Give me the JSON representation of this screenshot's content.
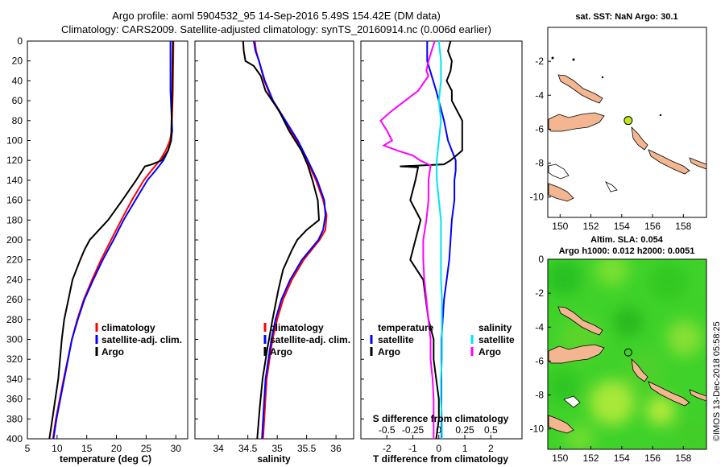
{
  "header": {
    "title_line1": "Argo profile: aoml 5904532_95 14-Sep-2016 5.49S 154.42E (DM data)",
    "title_line2": "Climatology: CARS2009. Satellite-adjusted climatology: synTS_20160914.nc (0.006d earlier)",
    "imos_stamp": "©IMOS 13-Dec-2018 05:58:25"
  },
  "colors": {
    "climatology": "#ff0000",
    "satellite": "#0000ff",
    "argo": "#000000",
    "sat_s": "#00e5ee",
    "s_diff": "#ff00ff",
    "land": "#f4b690",
    "sea_green": "#3fd22a",
    "float_marker": "#bfe61a"
  },
  "depth_ticks": [
    "0",
    "20",
    "40",
    "60",
    "80",
    "100",
    "120",
    "140",
    "160",
    "180",
    "200",
    "220",
    "240",
    "260",
    "280",
    "300",
    "320",
    "340",
    "360",
    "380",
    "400"
  ],
  "chart_data": [
    {
      "type": "line",
      "title": "",
      "xlabel": "temperature (deg C)",
      "ylabel": "depth",
      "xlim": [
        5,
        32
      ],
      "ylim": [
        0,
        400
      ],
      "xticks": [
        5,
        10,
        15,
        20,
        25,
        30
      ],
      "xtick_labels": [
        "5",
        "10",
        "15",
        "20",
        "25",
        "30"
      ],
      "legend": [
        "climatology",
        "satellite-adj. clim.",
        "Argo"
      ],
      "series": [
        {
          "name": "climatology",
          "color": "#ff0000",
          "depth": [
            0,
            50,
            90,
            100,
            110,
            120,
            130,
            140,
            160,
            180,
            200,
            220,
            240,
            260,
            280,
            300,
            340,
            380,
            400
          ],
          "values": [
            29.6,
            29.5,
            29.3,
            29.0,
            28.3,
            27.3,
            25.9,
            24.6,
            22.6,
            20.8,
            19.1,
            17.4,
            15.9,
            14.5,
            13.4,
            12.5,
            11.1,
            9.8,
            9.3
          ]
        },
        {
          "name": "satellite-adj. clim.",
          "color": "#0000ff",
          "depth": [
            0,
            50,
            90,
            100,
            110,
            120,
            130,
            140,
            160,
            180,
            200,
            220,
            240,
            260,
            280,
            300,
            340,
            380,
            400
          ],
          "values": [
            29.1,
            29.1,
            29.4,
            29.2,
            28.7,
            27.9,
            26.6,
            25.2,
            23.2,
            21.2,
            19.5,
            17.7,
            16.1,
            14.6,
            13.5,
            12.5,
            11.2,
            9.9,
            9.4
          ]
        },
        {
          "name": "Argo",
          "color": "#000000",
          "depth": [
            0,
            50,
            100,
            110,
            120,
            124,
            126,
            140,
            160,
            180,
            200,
            210,
            220,
            240,
            260,
            280,
            300,
            340,
            380,
            400
          ],
          "values": [
            29.5,
            29.4,
            29.2,
            28.7,
            27.6,
            26.0,
            24.8,
            23.3,
            21.0,
            18.6,
            15.5,
            14.6,
            13.9,
            12.6,
            11.9,
            11.2,
            10.8,
            10.2,
            9.2,
            8.7
          ]
        }
      ]
    },
    {
      "type": "line",
      "title": "",
      "xlabel": "salinity",
      "ylabel": "depth",
      "xlim": [
        33.6,
        36.3
      ],
      "ylim": [
        0,
        400
      ],
      "xticks": [
        34,
        34.5,
        35,
        35.5,
        36
      ],
      "xtick_labels": [
        "34",
        "34.5",
        "35",
        "35.5",
        "36"
      ],
      "legend": [
        "climatology",
        "satellite-adj. clim.",
        "Argo"
      ],
      "series": [
        {
          "name": "climatology",
          "color": "#ff0000",
          "depth": [
            0,
            10,
            20,
            40,
            60,
            80,
            100,
            120,
            140,
            160,
            175,
            190,
            200,
            220,
            240,
            260,
            280,
            300,
            340,
            380,
            400
          ],
          "values": [
            34.62,
            34.64,
            34.69,
            34.78,
            34.92,
            35.13,
            35.33,
            35.5,
            35.66,
            35.78,
            35.84,
            35.82,
            35.72,
            35.45,
            35.25,
            35.1,
            35.0,
            34.92,
            34.82,
            34.78,
            34.76
          ]
        },
        {
          "name": "satellite-adj. clim.",
          "color": "#0000ff",
          "depth": [
            0,
            10,
            20,
            40,
            60,
            80,
            100,
            120,
            140,
            160,
            175,
            190,
            200,
            220,
            240,
            260,
            280,
            300,
            340,
            380,
            400
          ],
          "values": [
            34.6,
            34.63,
            34.69,
            34.79,
            34.93,
            35.14,
            35.35,
            35.52,
            35.68,
            35.8,
            35.82,
            35.78,
            35.7,
            35.42,
            35.22,
            35.07,
            34.97,
            34.9,
            34.8,
            34.76,
            34.74
          ]
        },
        {
          "name": "Argo",
          "color": "#000000",
          "depth": [
            0,
            10,
            20,
            25,
            35,
            50,
            70,
            90,
            110,
            125,
            140,
            160,
            180,
            190,
            200,
            210,
            230,
            250,
            280,
            310,
            340,
            370,
            400
          ],
          "values": [
            34.42,
            34.43,
            34.46,
            34.6,
            34.72,
            34.8,
            35.03,
            35.2,
            35.41,
            35.52,
            35.6,
            35.69,
            35.71,
            35.5,
            35.34,
            35.25,
            35.1,
            35.02,
            34.92,
            34.83,
            34.75,
            34.7,
            34.66
          ]
        }
      ]
    },
    {
      "type": "line",
      "title": "",
      "xlabel": "T difference from climatology",
      "xlabel_top": "S difference from climatology",
      "ylabel": "depth",
      "xlim": [
        -3,
        3.2
      ],
      "ylim": [
        0,
        400
      ],
      "xticks": [
        -2,
        -1,
        0,
        1,
        2
      ],
      "xtick_labels": [
        "-2",
        "-1",
        "0",
        "1",
        "2"
      ],
      "top_ticks": [
        "-0.5",
        "-0.25",
        "0",
        "0.25",
        "0.5"
      ],
      "legend_groups": [
        {
          "heading": "temperature",
          "items": [
            "satellite",
            "Argo"
          ]
        },
        {
          "heading": "salinity",
          "items": [
            "satellite",
            "Argo"
          ]
        }
      ],
      "series": [
        {
          "name": "T satellite",
          "color": "#0000ff",
          "depth": [
            0,
            20,
            50,
            80,
            100,
            110,
            120,
            130,
            140,
            160,
            180,
            200,
            220,
            240,
            260,
            280,
            300,
            340,
            380,
            400
          ],
          "values": [
            -0.45,
            -0.45,
            -0.1,
            0.2,
            0.35,
            0.5,
            0.65,
            0.65,
            0.6,
            0.6,
            0.5,
            0.45,
            0.4,
            0.3,
            0.2,
            0.15,
            0.1,
            0.1,
            0.1,
            0.1
          ]
        },
        {
          "name": "T Argo",
          "color": "#000000",
          "depth": [
            0,
            10,
            20,
            30,
            40,
            50,
            60,
            80,
            100,
            110,
            120,
            124,
            126,
            127,
            140,
            160,
            180,
            200,
            220,
            240,
            260,
            280,
            300,
            320,
            340,
            360,
            380,
            400
          ],
          "values": [
            0.45,
            0.35,
            0.5,
            0.45,
            0.3,
            0.5,
            0.5,
            0.9,
            0.9,
            0.9,
            0.45,
            0.2,
            -1.5,
            -0.8,
            -0.9,
            -1.1,
            -0.7,
            -0.9,
            -1.1,
            -0.6,
            -0.5,
            -0.4,
            -0.2,
            -0.2,
            -0.1,
            0.0,
            0.0,
            -0.1
          ]
        },
        {
          "name": "S satellite",
          "color": "#00e5ee",
          "depth": [
            0,
            20,
            40,
            60,
            80,
            100,
            120,
            140,
            160,
            180,
            200,
            220,
            240,
            260,
            280,
            300,
            320,
            340,
            360,
            380,
            400
          ],
          "values": [
            0.0,
            0.02,
            0.02,
            0.0,
            0.02,
            0.0,
            -0.02,
            -0.02,
            0.0,
            0.02,
            0.02,
            0.02,
            0.02,
            0.03,
            0.03,
            0.03,
            0.03,
            0.02,
            0.02,
            0.03,
            0.03
          ]
        },
        {
          "name": "S Argo",
          "color": "#ff00ff",
          "depth": [
            0,
            10,
            20,
            30,
            35,
            50,
            70,
            80,
            90,
            100,
            105,
            110,
            115,
            120,
            125,
            140,
            160,
            180,
            200,
            220,
            240,
            260,
            280,
            300,
            320,
            340,
            360,
            380,
            400
          ],
          "values": [
            -0.04,
            -0.07,
            -0.1,
            -0.12,
            -0.1,
            -0.2,
            -0.45,
            -0.56,
            -0.5,
            -0.45,
            -0.53,
            -0.4,
            -0.25,
            -0.18,
            -0.08,
            -0.1,
            -0.1,
            -0.12,
            -0.15,
            -0.15,
            -0.14,
            -0.12,
            -0.1,
            -0.08,
            -0.08,
            -0.06,
            -0.05,
            -0.05,
            -0.05
          ]
        }
      ]
    },
    {
      "type": "map",
      "title": "sat. SST: NaN Argo: 30.1",
      "xlim": [
        149.2,
        159.5
      ],
      "ylim": [
        -11.2,
        0
      ],
      "xticks": [
        150,
        152,
        154,
        156,
        158
      ],
      "yticks": [
        -2,
        -4,
        -6,
        -8,
        -10
      ],
      "xtick_labels": [
        "150",
        "152",
        "154",
        "156",
        "158"
      ],
      "ytick_labels": [
        "-2",
        "-4",
        "-6",
        "-8",
        "-10"
      ],
      "float_lon": 154.42,
      "float_lat": -5.49
    },
    {
      "type": "map",
      "title_line1": "Altim. SLA: 0.054",
      "title_line2": "Argo h1000: 0.012 h2000: 0.0051",
      "xlim": [
        149.2,
        159.5
      ],
      "ylim": [
        -11.2,
        0
      ],
      "xticks": [
        150,
        152,
        154,
        156,
        158
      ],
      "yticks": [
        0,
        -2,
        -4,
        -6,
        -8,
        -10
      ],
      "xtick_labels": [
        "150",
        "152",
        "154",
        "156",
        "158"
      ],
      "ytick_labels": [
        "0",
        "-2",
        "-4",
        "-6",
        "-8",
        "-10"
      ],
      "float_lon": 154.42,
      "float_lat": -5.49
    }
  ]
}
